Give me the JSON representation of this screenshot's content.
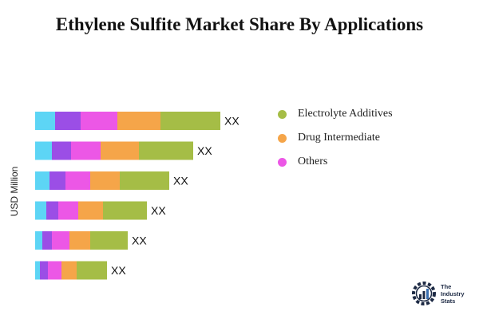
{
  "title": "Ethylene Sulfite Market Share By Applications",
  "chart_data": {
    "type": "bar",
    "orientation": "horizontal",
    "stacked": true,
    "ylabel": "USD Million",
    "bar_label": "XX",
    "grid": false,
    "legend_position": "right",
    "series": [
      {
        "key": "s1",
        "color": "#5dd5f5",
        "values": [
          25,
          21,
          18,
          14,
          9,
          6
        ]
      },
      {
        "key": "s2",
        "color": "#9b4ee6",
        "values": [
          32,
          24,
          20,
          15,
          12,
          10
        ]
      },
      {
        "key": "s3",
        "color": "#ec57e6",
        "values": [
          46,
          37,
          31,
          25,
          22,
          17
        ]
      },
      {
        "key": "s4",
        "color": "#f5a549",
        "values": [
          54,
          48,
          37,
          31,
          26,
          19
        ]
      },
      {
        "key": "s5",
        "color": "#a5bd46",
        "values": [
          75,
          68,
          62,
          55,
          47,
          38
        ]
      }
    ]
  },
  "legend": [
    {
      "label": "Electrolyte Additives",
      "color": "#a5bd46"
    },
    {
      "label": "Drug Intermediate",
      "color": "#f5a549"
    },
    {
      "label": "Others",
      "color": "#ec57e6"
    }
  ],
  "logo": {
    "line1": "The",
    "line2": "Industry",
    "line3": "Stats"
  }
}
